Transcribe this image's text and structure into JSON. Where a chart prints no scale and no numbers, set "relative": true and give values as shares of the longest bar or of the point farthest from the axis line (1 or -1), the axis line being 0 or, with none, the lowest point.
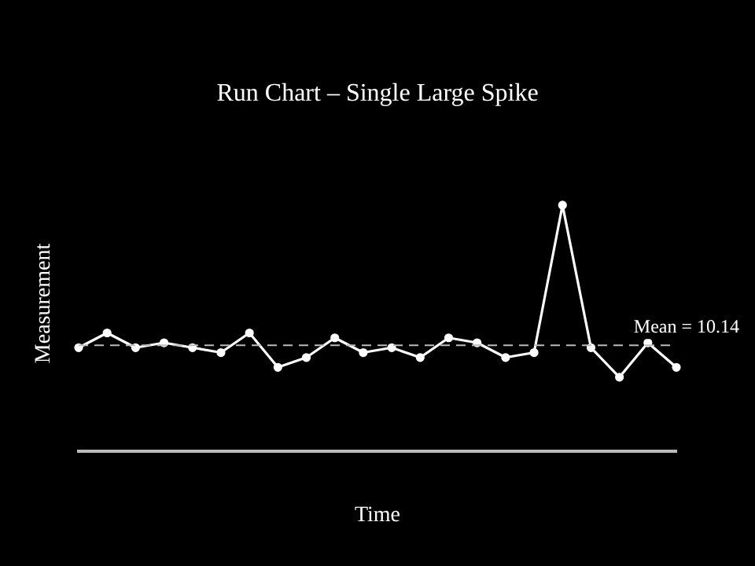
{
  "chart_data": {
    "type": "line",
    "title": "Run Chart – Single Large Spike",
    "xlabel": "Time",
    "ylabel": "Measurement",
    "relative": true,
    "categories": [
      null,
      null,
      null,
      null,
      null,
      null,
      null,
      null,
      null,
      null,
      null,
      null,
      null,
      null,
      null,
      null,
      null,
      null,
      null,
      null,
      null,
      null
    ],
    "series": [
      {
        "color": "#ffffff",
        "values": [
          0.42,
          0.48,
          0.42,
          0.44,
          0.42,
          0.4,
          0.48,
          0.34,
          0.38,
          0.46,
          0.4,
          0.42,
          0.38,
          0.46,
          0.44,
          0.38,
          0.4,
          1,
          0.42,
          0.3,
          0.44,
          0.34
        ]
      }
    ],
    "ref_lines": [
      {
        "axis": "y",
        "value": 0.43,
        "color": "#bbbbbb",
        "line_style": "dashed"
      }
    ],
    "annotations": [
      "Mean = 10.14"
    ],
    "marker": "circle",
    "line_style": "solid",
    "grid": false,
    "legend": false
  }
}
